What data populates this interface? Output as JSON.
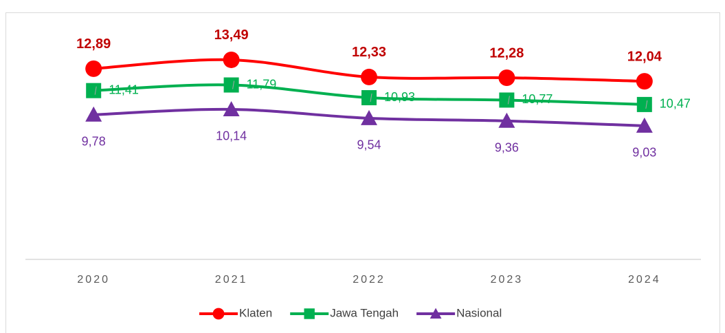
{
  "chart_data": {
    "type": "line",
    "categories": [
      "2020",
      "2021",
      "2022",
      "2023",
      "2024"
    ],
    "series": [
      {
        "name": "Klaten",
        "color": "#ff0000",
        "values": [
          12.89,
          13.49,
          12.33,
          12.28,
          12.04
        ],
        "value_labels": [
          "12,89",
          "13,49",
          "12,33",
          "12,28",
          "12,04"
        ]
      },
      {
        "name": "Jawa Tengah",
        "color": "#00b050",
        "values": [
          11.41,
          11.79,
          10.93,
          10.77,
          10.47
        ],
        "value_labels": [
          "11,41",
          "11,79",
          "10,93",
          "10,77",
          "10,47"
        ]
      },
      {
        "name": "Nasional",
        "color": "#7030a0",
        "values": [
          9.78,
          10.14,
          9.54,
          9.36,
          9.03
        ],
        "value_labels": [
          "9,78",
          "10,14",
          "9,54",
          "9,36",
          "9,03"
        ]
      }
    ],
    "ylim": [
      0,
      16
    ],
    "grid": false,
    "legend": "bottom"
  }
}
